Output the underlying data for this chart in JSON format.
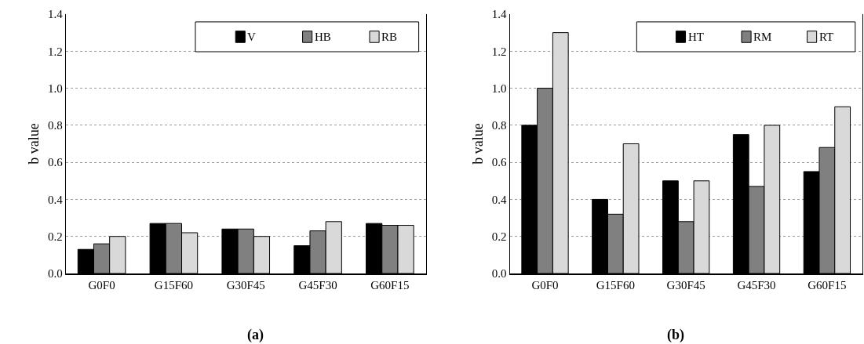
{
  "chart_data": [
    {
      "type": "bar",
      "categories": [
        "G0F0",
        "G15F60",
        "G30F45",
        "G45F30",
        "G60F15"
      ],
      "ylabel": "b value",
      "annotations": [
        "(a)"
      ],
      "series": [
        {
          "name": "V",
          "color": "#000000",
          "values": [
            0.13,
            0.27,
            0.24,
            0.15,
            0.27
          ]
        },
        {
          "name": "HB",
          "color": "#808080",
          "values": [
            0.16,
            0.27,
            0.24,
            0.23,
            0.26
          ]
        },
        {
          "name": "RB",
          "color": "#d9d9d9",
          "values": [
            0.2,
            0.22,
            0.2,
            0.28,
            0.26
          ]
        }
      ],
      "ylim": [
        0,
        1.4
      ],
      "yticks": [
        {
          "value": 0,
          "label": "0.0"
        },
        {
          "value": 0.2,
          "label": "0.2"
        },
        {
          "value": 0.4,
          "label": "0.4"
        },
        {
          "value": 0.6,
          "label": "0.6"
        },
        {
          "value": 0.8,
          "label": "0.8"
        },
        {
          "value": 1.0,
          "label": "1.0"
        },
        {
          "value": 1.2,
          "label": "1.2"
        },
        {
          "value": 1.4,
          "label": "1.4"
        }
      ],
      "grid": "y",
      "legend": "top right"
    },
    {
      "type": "bar",
      "categories": [
        "G0F0",
        "G15F60",
        "G30F45",
        "G45F30",
        "G60F15"
      ],
      "ylabel": "b value",
      "annotations": [
        "(b)"
      ],
      "series": [
        {
          "name": "HT",
          "color": "#000000",
          "values": [
            0.8,
            0.4,
            0.5,
            0.75,
            0.55
          ]
        },
        {
          "name": "RM",
          "color": "#808080",
          "values": [
            1.0,
            0.32,
            0.28,
            0.47,
            0.68
          ]
        },
        {
          "name": "RT",
          "color": "#d9d9d9",
          "values": [
            1.3,
            0.7,
            0.5,
            0.8,
            0.9
          ]
        }
      ],
      "ylim": [
        0,
        1.4
      ],
      "yticks": [
        {
          "value": 0,
          "label": "0.0"
        },
        {
          "value": 0.2,
          "label": "0.2"
        },
        {
          "value": 0.4,
          "label": "0.4"
        },
        {
          "value": 0.6,
          "label": "0.6"
        },
        {
          "value": 0.8,
          "label": "0.8"
        },
        {
          "value": 1.0,
          "label": "1.0"
        },
        {
          "value": 1.2,
          "label": "1.2"
        },
        {
          "value": 1.4,
          "label": "1.4"
        }
      ],
      "grid": "y",
      "legend": "top right"
    }
  ]
}
